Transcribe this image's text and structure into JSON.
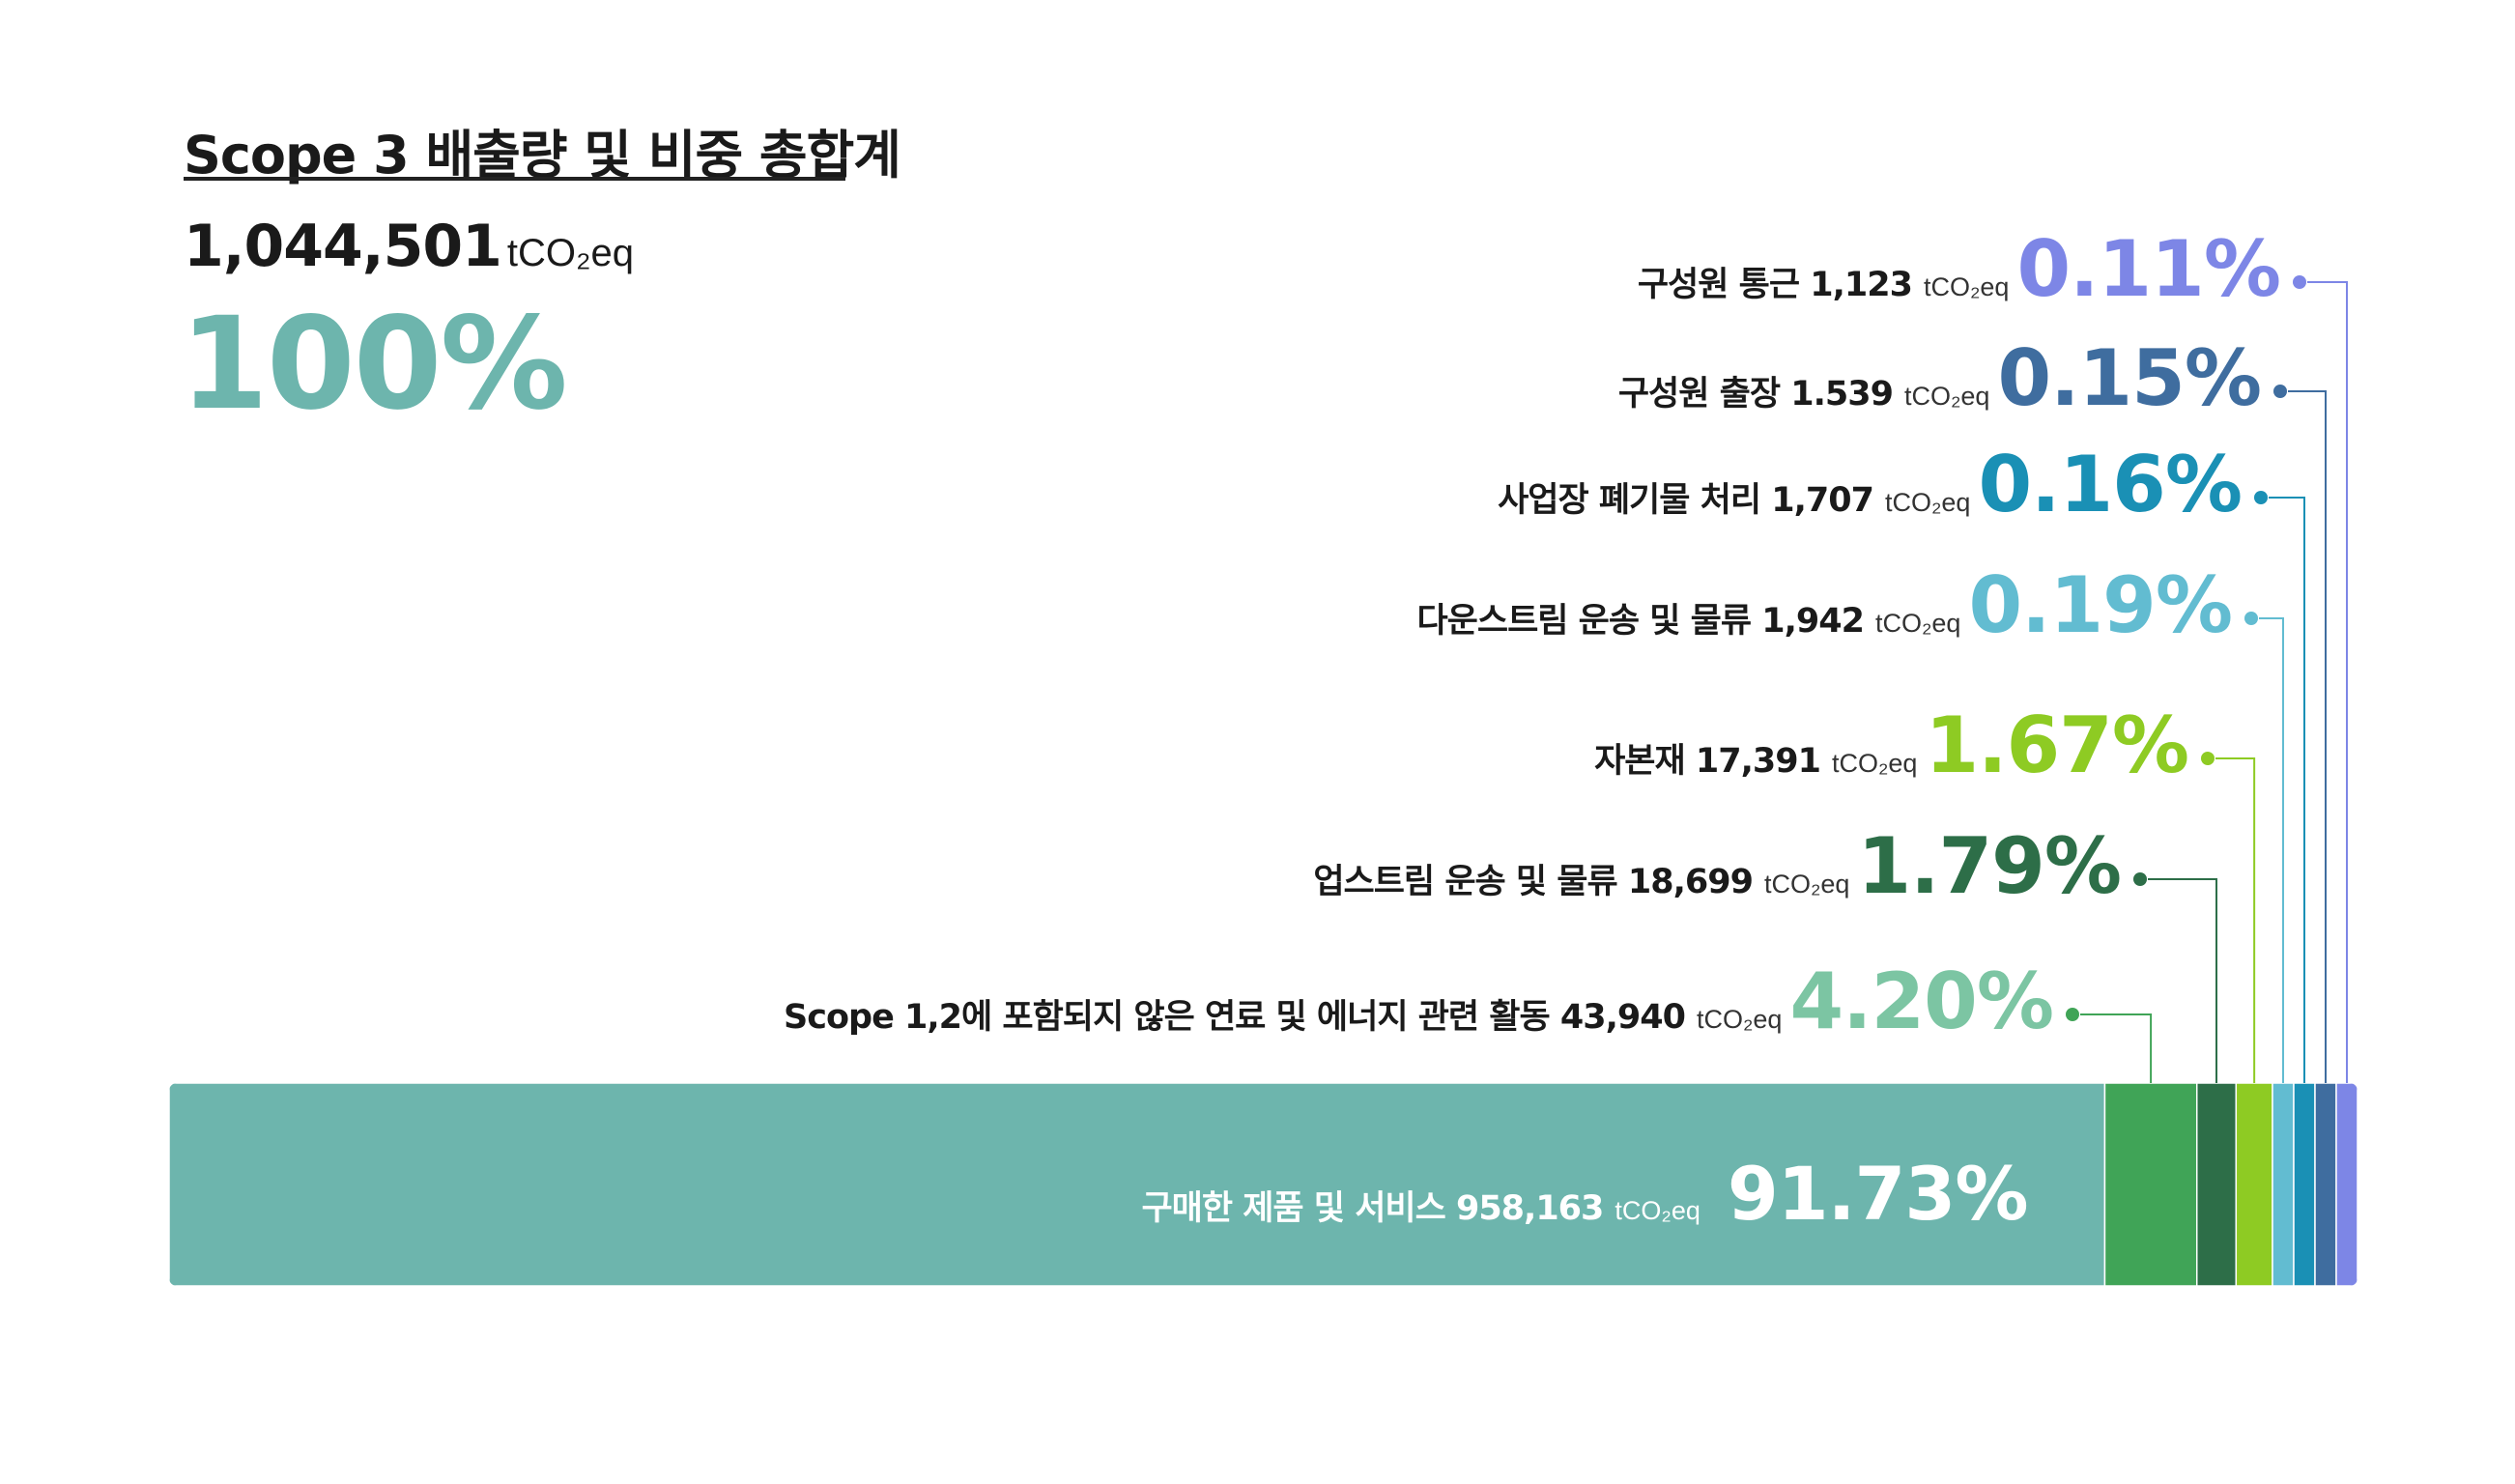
{
  "header": {
    "title": "Scope 3 배출량 및 비중 총합계",
    "total_value": "1,044,501",
    "total_unit": "tCO₂eq",
    "total_percent": "100%",
    "total_color": "#6db5ad"
  },
  "chart_data": {
    "type": "bar",
    "orientation": "horizontal-stacked",
    "unit": "tCO₂eq",
    "total": 1044501,
    "series": [
      {
        "name": "구매한 제품 및 서비스",
        "value_label": "958,163",
        "value": 958163,
        "percent": 91.73,
        "percent_label": "91.73%",
        "color": "#6db5ad",
        "label_color": "#ffffff"
      },
      {
        "name": "Scope 1,2에 포함되지 않은 연료 및 에너지 관련 활동",
        "value_label": "43,940",
        "value": 43940,
        "percent": 4.2,
        "percent_label": "4.20%",
        "color": "#40a457",
        "label_color": "#7cc5a3"
      },
      {
        "name": "업스트림 운송 및 물류",
        "value_label": "18,699",
        "value": 18699,
        "percent": 1.79,
        "percent_label": "1.79%",
        "color": "#2d6e48",
        "label_color": "#2d6e48"
      },
      {
        "name": "자본재",
        "value_label": "17,391",
        "value": 17391,
        "percent": 1.67,
        "percent_label": "1.67%",
        "color": "#8ecb23",
        "label_color": "#8ecb23"
      },
      {
        "name": "다운스트림 운송 및 물류",
        "value_label": "1,942",
        "value": 1942,
        "percent": 0.19,
        "percent_label": "0.19%",
        "color": "#62bcd1",
        "label_color": "#62bcd1"
      },
      {
        "name": "사업장 폐기물 처리",
        "value_label": "1,707",
        "value": 1707,
        "percent": 0.16,
        "percent_label": "0.16%",
        "color": "#1a90b5",
        "label_color": "#1a90b5"
      },
      {
        "name": "구성원 출장",
        "value_label": "1.539",
        "value": 1539,
        "percent": 0.15,
        "percent_label": "0.15%",
        "color": "#3f6d9f",
        "label_color": "#3f6d9f"
      },
      {
        "name": "구성원 통근",
        "value_label": "1,123",
        "value": 1123,
        "percent": 0.11,
        "percent_label": "0.11%",
        "color": "#7d86e6",
        "label_color": "#7d86e6"
      }
    ]
  }
}
